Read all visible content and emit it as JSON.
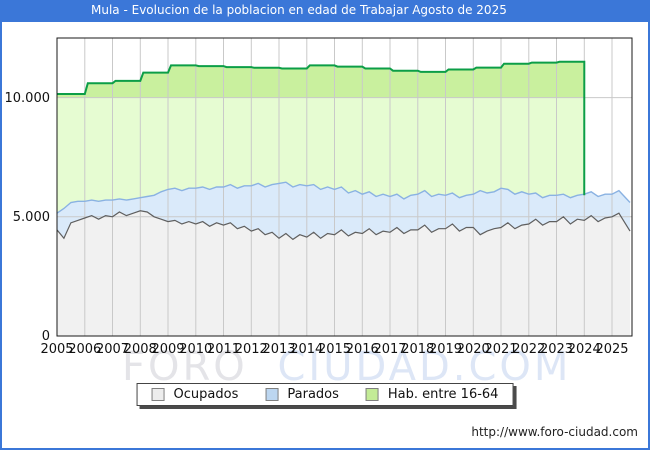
{
  "window": {
    "title": "Mula - Evolucion de la poblacion en edad de Trabajar Agosto de 2025",
    "titlebar_color": "#3b77d8",
    "frame_color": "#3b77d8"
  },
  "watermark": {
    "part1": "FORO",
    "part2": "CIUDAD.COM"
  },
  "footer": {
    "url": "http://www.foro-ciudad.com"
  },
  "axis": {
    "y_ticks": [
      "0",
      "5.000",
      "10.000"
    ],
    "x_ticks": [
      "2005",
      "2006",
      "2007",
      "2008",
      "2009",
      "2010",
      "2011",
      "2012",
      "2013",
      "2014",
      "2015",
      "2016",
      "2017",
      "2018",
      "2019",
      "2020",
      "2021",
      "2022",
      "2023",
      "2024",
      "2025"
    ],
    "gridline_color": "#c9c9c9",
    "plot_border_color": "#1a1a1a"
  },
  "legend": {
    "items": [
      {
        "label": "Ocupados",
        "swatch_fill": "#ededed"
      },
      {
        "label": "Parados",
        "swatch_fill": "#bcd6f0"
      },
      {
        "label": "Hab. entre 16-64",
        "swatch_fill": "#c3eb96"
      }
    ]
  },
  "chart_data": {
    "type": "area",
    "title": "Mula - Evolucion de la poblacion en edad de Trabajar Agosto de 2025",
    "xlabel": "",
    "ylabel": "",
    "ylim": [
      0,
      12500
    ],
    "y_gridlines": [
      5000,
      10000
    ],
    "x_range_years": [
      2005.0,
      2025.65
    ],
    "grid": true,
    "legend_position": "bottom",
    "series": [
      {
        "name": "Ocupados",
        "role": "stack-base",
        "stroke": "#5f5f5f",
        "fill": "#f1f1f1",
        "x_start": 2005.0,
        "x_step_years": 0.25,
        "x_last": 2025.65,
        "values": [
          4450,
          4100,
          4750,
          4850,
          4950,
          5050,
          4900,
          5050,
          5000,
          5200,
          5050,
          5150,
          5250,
          5200,
          5000,
          4900,
          4800,
          4850,
          4700,
          4800,
          4700,
          4800,
          4600,
          4750,
          4650,
          4750,
          4500,
          4600,
          4400,
          4500,
          4250,
          4350,
          4100,
          4300,
          4050,
          4250,
          4150,
          4350,
          4100,
          4300,
          4250,
          4450,
          4200,
          4350,
          4300,
          4500,
          4250,
          4400,
          4350,
          4550,
          4300,
          4450,
          4450,
          4650,
          4350,
          4500,
          4500,
          4700,
          4400,
          4550,
          4550,
          4250,
          4400,
          4500,
          4550,
          4750,
          4500,
          4650,
          4700,
          4900,
          4650,
          4800,
          4800,
          5000,
          4700,
          4900,
          4850,
          5050,
          4800,
          4950,
          5000,
          5150,
          4400
        ]
      },
      {
        "name": "Parados",
        "role": "stacked-on-Ocupados",
        "stroke": "#8ab2e2",
        "fill": "#daeafa",
        "x_start": 2005.0,
        "x_step_years": 0.25,
        "x_last": 2025.65,
        "values": [
          700,
          1250,
          850,
          800,
          700,
          650,
          750,
          650,
          700,
          550,
          650,
          600,
          550,
          650,
          900,
          1150,
          1350,
          1350,
          1400,
          1400,
          1500,
          1450,
          1550,
          1500,
          1600,
          1600,
          1700,
          1700,
          1900,
          1900,
          2000,
          2000,
          2300,
          2150,
          2200,
          2100,
          2150,
          2000,
          2050,
          1950,
          1900,
          1800,
          1800,
          1750,
          1650,
          1550,
          1600,
          1550,
          1500,
          1400,
          1450,
          1450,
          1500,
          1450,
          1500,
          1450,
          1400,
          1300,
          1400,
          1350,
          1400,
          1850,
          1600,
          1550,
          1650,
          1400,
          1450,
          1400,
          1250,
          1100,
          1150,
          1100,
          1100,
          950,
          1100,
          1000,
          1100,
          1000,
          1050,
          1000,
          950,
          950,
          1200
        ]
      },
      {
        "name": "Hab. entre 16-64",
        "role": "independent-step-line",
        "stroke": "#0c9e47",
        "fill": "#e6fcd2",
        "fill_above_10000": "#c9f09e",
        "x_years": [
          2005,
          2006,
          2007,
          2008,
          2009,
          2010,
          2011,
          2012,
          2013,
          2014,
          2015,
          2016,
          2017,
          2018,
          2019,
          2020,
          2021,
          2022,
          2023
        ],
        "values": [
          10150,
          10600,
          10700,
          11050,
          11350,
          11320,
          11280,
          11250,
          11220,
          11350,
          11300,
          11220,
          11130,
          11080,
          11180,
          11260,
          11420,
          11470,
          11500
        ],
        "ends_at_year": 2024.0
      }
    ]
  }
}
